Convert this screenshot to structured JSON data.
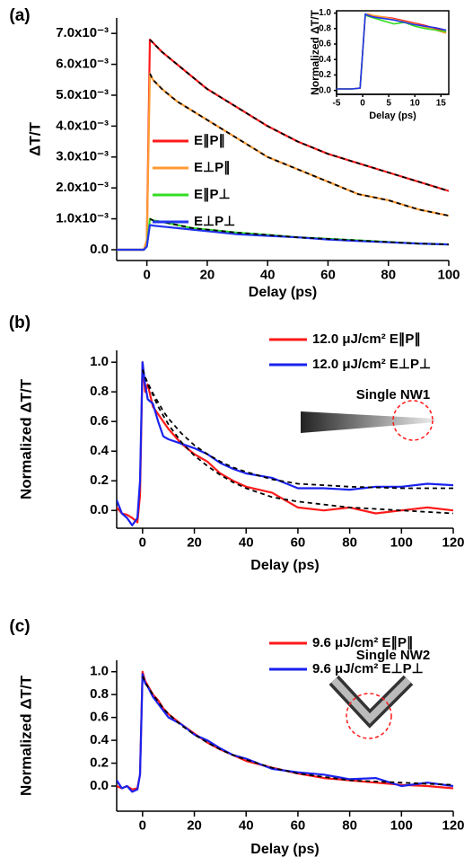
{
  "chart_data": [
    {
      "type": "line",
      "label": "(a)",
      "xlabel": "Delay (ps)",
      "ylabel": "ΔT/T",
      "x": [
        -10,
        -5,
        -1,
        0,
        1,
        2,
        5,
        10,
        15,
        20,
        30,
        40,
        50,
        60,
        70,
        80,
        90,
        100
      ],
      "series": [
        {
          "name": "E∥P∥",
          "color": "#ff1a1a",
          "values": [
            0,
            0,
            0,
            0.0003,
            0.0068,
            0.0067,
            0.0064,
            0.006,
            0.0056,
            0.0052,
            0.0046,
            0.004,
            0.0035,
            0.0031,
            0.0028,
            0.0025,
            0.0022,
            0.0019
          ]
        },
        {
          "name": "E⊥P∥",
          "color": "#ff9a33",
          "values": [
            0,
            0,
            0,
            0.0003,
            0.0057,
            0.0055,
            0.0052,
            0.0048,
            0.0045,
            0.0042,
            0.0036,
            0.003,
            0.0026,
            0.0022,
            0.0018,
            0.0016,
            0.0013,
            0.0011
          ]
        },
        {
          "name": "E∥P⊥",
          "color": "#33dd22",
          "values": [
            0,
            0,
            0,
            0.0001,
            0.001,
            0.00095,
            0.0009,
            0.0008,
            0.0007,
            0.00065,
            0.00055,
            0.00048,
            0.0004,
            0.00035,
            0.0003,
            0.00025,
            0.0002,
            0.00017
          ]
        },
        {
          "name": "E⊥P⊥",
          "color": "#2233ee",
          "values": [
            0,
            0,
            0,
            0.0001,
            0.0008,
            0.00078,
            0.00075,
            0.0007,
            0.00065,
            0.0006,
            0.0005,
            0.00045,
            0.0004,
            0.00033,
            0.00028,
            0.00024,
            0.0002,
            0.00017
          ]
        }
      ],
      "fits": [
        {
          "color": "#000000",
          "values": [
            null,
            null,
            null,
            null,
            0.0068,
            0.0067,
            0.0064,
            0.006,
            0.0056,
            0.0052,
            0.0046,
            0.004,
            0.0035,
            0.0031,
            0.0028,
            0.0025,
            0.0022,
            0.0019
          ]
        },
        {
          "color": "#000000",
          "values": [
            null,
            null,
            null,
            null,
            0.0057,
            0.0055,
            0.0052,
            0.0048,
            0.0045,
            0.0042,
            0.0036,
            0.003,
            0.0026,
            0.0022,
            0.0018,
            0.0016,
            0.0013,
            0.0011
          ]
        },
        {
          "color": "#000000",
          "values": [
            null,
            null,
            null,
            null,
            0.001,
            0.00095,
            0.0009,
            0.0008,
            0.0007,
            0.00065,
            0.00055,
            0.00048,
            0.0004,
            0.00035,
            0.0003,
            0.00025,
            0.0002,
            0.00017
          ]
        }
      ],
      "xlim": [
        -10,
        100
      ],
      "ylim": [
        -0.00035,
        0.0075
      ],
      "xticks": [
        0,
        20,
        40,
        60,
        80,
        100
      ],
      "yticks": [
        {
          "value": 0,
          "label": "0.0"
        },
        {
          "value": 0.001,
          "label": "1.0x10⁻³"
        },
        {
          "value": 0.002,
          "label": "2.0x10⁻³"
        },
        {
          "value": 0.003,
          "label": "3.0x10⁻³"
        },
        {
          "value": 0.004,
          "label": "4.0x10⁻³"
        },
        {
          "value": 0.005,
          "label": "5.0x10⁻³"
        },
        {
          "value": 0.006,
          "label": "6.0x10⁻³"
        },
        {
          "value": 0.007,
          "label": "7.0x10⁻³"
        }
      ]
    },
    {
      "type": "line",
      "xlabel": "Delay (ps)",
      "ylabel": "Normalized  ΔT/T",
      "x": [
        -5,
        -2,
        -0.5,
        0,
        0.5,
        1,
        2,
        4,
        6,
        8,
        10,
        12,
        14,
        16
      ],
      "series": [
        {
          "color": "#ff1a1a",
          "values": [
            0.02,
            0.02,
            0.03,
            0.5,
            0.97,
            0.98,
            0.96,
            0.95,
            0.93,
            0.9,
            0.87,
            0.84,
            0.8,
            0.76
          ]
        },
        {
          "color": "#ff9a33",
          "values": [
            0.02,
            0.02,
            0.03,
            0.5,
            0.96,
            0.99,
            0.97,
            0.95,
            0.92,
            0.89,
            0.86,
            0.82,
            0.78,
            0.74
          ]
        },
        {
          "color": "#33dd22",
          "values": [
            0.02,
            0.02,
            0.03,
            0.5,
            0.98,
            0.96,
            0.94,
            0.9,
            0.86,
            0.88,
            0.83,
            0.8,
            0.78,
            0.76
          ]
        },
        {
          "color": "#2233ee",
          "values": [
            0.02,
            0.02,
            0.03,
            0.5,
            0.99,
            0.97,
            0.95,
            0.93,
            0.91,
            0.88,
            0.85,
            0.83,
            0.81,
            0.78
          ]
        }
      ],
      "xlim": [
        -5,
        16.5
      ],
      "ylim": [
        -0.05,
        1.03
      ],
      "xticks": [
        -5,
        0,
        5,
        10,
        15
      ],
      "yticks": [
        {
          "value": 0,
          "label": "0.0"
        },
        0.2,
        0.4,
        0.6,
        0.8,
        {
          "value": 1,
          "label": "1.0"
        }
      ]
    },
    {
      "type": "line",
      "label": "(b)",
      "xlabel": "Delay (ps)",
      "ylabel": "Normalized ΔT/T",
      "annotation": "Single NW1",
      "x": [
        -10,
        -8,
        -6,
        -4,
        -2,
        -1,
        0,
        1,
        2,
        4,
        6,
        8,
        10,
        15,
        20,
        25,
        30,
        35,
        40,
        50,
        60,
        70,
        80,
        90,
        100,
        110,
        120
      ],
      "series": [
        {
          "name": "12.0 μJ/cm² E∥P∥",
          "color": "#ff1a1a",
          "values": [
            0.02,
            -0.02,
            -0.03,
            -0.05,
            -0.08,
            0.1,
            1.0,
            0.8,
            0.85,
            0.7,
            0.65,
            0.6,
            0.55,
            0.45,
            0.38,
            0.33,
            0.25,
            0.2,
            0.16,
            0.12,
            0.02,
            0.0,
            0.02,
            -0.02,
            0.0,
            0.02,
            0.0
          ]
        },
        {
          "name": "12.0 μJ/cm² E⊥P⊥",
          "color": "#1a22ee",
          "values": [
            0.07,
            -0.02,
            -0.05,
            -0.1,
            -0.05,
            0.2,
            1.0,
            0.85,
            0.75,
            0.72,
            0.6,
            0.5,
            0.48,
            0.45,
            0.42,
            0.38,
            0.32,
            0.28,
            0.25,
            0.22,
            0.15,
            0.15,
            0.14,
            0.16,
            0.16,
            0.18,
            0.17
          ]
        }
      ],
      "fits": [
        {
          "color": "#000000",
          "values": [
            null,
            null,
            null,
            null,
            null,
            null,
            0.95,
            0.9,
            0.85,
            0.78,
            0.7,
            0.64,
            0.58,
            0.46,
            0.37,
            0.3,
            0.24,
            0.19,
            0.15,
            0.09,
            0.06,
            0.04,
            0.02,
            0.01,
            0.0,
            -0.01,
            -0.02
          ]
        },
        {
          "color": "#000000",
          "values": [
            null,
            null,
            null,
            null,
            null,
            null,
            0.95,
            0.9,
            0.86,
            0.79,
            0.73,
            0.67,
            0.62,
            0.52,
            0.44,
            0.38,
            0.33,
            0.29,
            0.26,
            0.21,
            0.18,
            0.17,
            0.16,
            0.155,
            0.15,
            0.15,
            0.15
          ]
        }
      ],
      "xlim": [
        -10,
        120
      ],
      "ylim": [
        -0.12,
        1.08
      ],
      "xticks": [
        0,
        20,
        40,
        60,
        80,
        100,
        120
      ],
      "yticks": [
        {
          "value": 0,
          "label": "0.0"
        },
        0.2,
        0.4,
        0.6,
        0.8,
        {
          "value": 1,
          "label": "1.0"
        }
      ]
    },
    {
      "type": "line",
      "label": "(c)",
      "xlabel": "Delay (ps)",
      "ylabel": "Normalized ΔT/T",
      "annotation": "Single NW2",
      "x": [
        -10,
        -8,
        -6,
        -4,
        -2,
        -1,
        0,
        1,
        2,
        4,
        6,
        8,
        10,
        15,
        20,
        25,
        30,
        35,
        40,
        50,
        60,
        70,
        80,
        90,
        100,
        110,
        120
      ],
      "series": [
        {
          "name": "9.6 μJ/cm² E∥P∥",
          "color": "#ff1a1a",
          "values": [
            0,
            -0.02,
            0.0,
            -0.03,
            -0.02,
            0.1,
            1.0,
            0.92,
            0.88,
            0.8,
            0.75,
            0.68,
            0.63,
            0.54,
            0.46,
            0.38,
            0.32,
            0.27,
            0.22,
            0.16,
            0.11,
            0.07,
            0.05,
            0.03,
            0.01,
            0.0,
            -0.02
          ]
        },
        {
          "name": "9.6 μJ/cm² E⊥P⊥",
          "color": "#1a22ee",
          "values": [
            0.05,
            -0.02,
            0.0,
            -0.05,
            -0.03,
            0.1,
            0.98,
            0.9,
            0.87,
            0.78,
            0.72,
            0.66,
            0.6,
            0.54,
            0.45,
            0.4,
            0.33,
            0.27,
            0.24,
            0.15,
            0.12,
            0.1,
            0.06,
            0.07,
            0.0,
            0.03,
            0.0
          ]
        }
      ],
      "fits": [
        {
          "color": "#000000",
          "values": [
            null,
            null,
            null,
            null,
            null,
            null,
            0.96,
            0.91,
            0.87,
            0.8,
            0.74,
            0.68,
            0.63,
            0.53,
            0.45,
            0.38,
            0.32,
            0.27,
            0.23,
            0.16,
            0.11,
            0.08,
            0.05,
            0.04,
            0.03,
            0.02,
            0.01
          ]
        }
      ],
      "xlim": [
        -10,
        120
      ],
      "ylim": [
        -0.22,
        1.1
      ],
      "xticks": [
        0,
        20,
        40,
        60,
        80,
        100,
        120
      ],
      "yticks": [
        {
          "value": 0,
          "label": "0.0"
        },
        0.2,
        0.4,
        0.6,
        0.8,
        {
          "value": 1,
          "label": "1.0"
        }
      ]
    }
  ]
}
